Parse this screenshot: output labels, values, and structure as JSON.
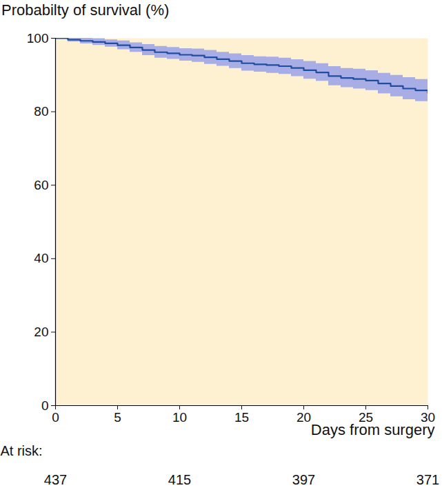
{
  "chart_data": {
    "type": "line",
    "title": "Probabilty of survival (%)",
    "x_label": "Days from surgery",
    "x": [
      0,
      1,
      2,
      3,
      4,
      5,
      6,
      7,
      8,
      9,
      10,
      11,
      12,
      13,
      14,
      15,
      16,
      17,
      18,
      19,
      20,
      21,
      22,
      23,
      24,
      25,
      26,
      27,
      28,
      29,
      30
    ],
    "values": [
      100,
      99.6,
      99.3,
      99.0,
      98.6,
      98.1,
      97.5,
      96.8,
      96.2,
      95.9,
      95.5,
      95.3,
      94.8,
      94.3,
      93.8,
      93.2,
      92.9,
      92.7,
      92.4,
      91.9,
      91.3,
      90.7,
      89.7,
      89.2,
      88.9,
      88.5,
      87.7,
      87.0,
      86.3,
      85.8,
      85.2
    ],
    "ci_lower": [
      100,
      99.0,
      98.5,
      98.1,
      97.6,
      96.9,
      96.2,
      95.3,
      94.6,
      94.3,
      93.8,
      93.5,
      92.9,
      92.4,
      91.8,
      91.1,
      90.8,
      90.5,
      90.2,
      89.6,
      88.9,
      88.3,
      87.1,
      86.6,
      86.2,
      85.8,
      84.9,
      84.1,
      83.3,
      82.8,
      82.1
    ],
    "ci_upper": [
      100,
      100,
      100,
      99.9,
      99.6,
      99.3,
      98.8,
      98.3,
      97.8,
      97.5,
      97.2,
      97.1,
      96.7,
      96.2,
      95.8,
      95.3,
      95.0,
      94.9,
      94.6,
      94.2,
      93.7,
      93.1,
      92.3,
      91.8,
      91.6,
      91.2,
      90.5,
      89.9,
      89.3,
      88.8,
      88.3
    ],
    "color": "#1e4da0",
    "line_style": "step",
    "xlim": [
      0,
      30
    ],
    "xticks": [
      0,
      5,
      10,
      15,
      20,
      25,
      30
    ],
    "ylim": [
      0,
      100
    ],
    "yticks": [
      0,
      20,
      40,
      60,
      80,
      100
    ],
    "grid": false,
    "at_risk": {
      "label": "At risk:",
      "x": [
        0,
        10,
        20,
        30
      ],
      "values": [
        437,
        415,
        397,
        371
      ]
    }
  }
}
